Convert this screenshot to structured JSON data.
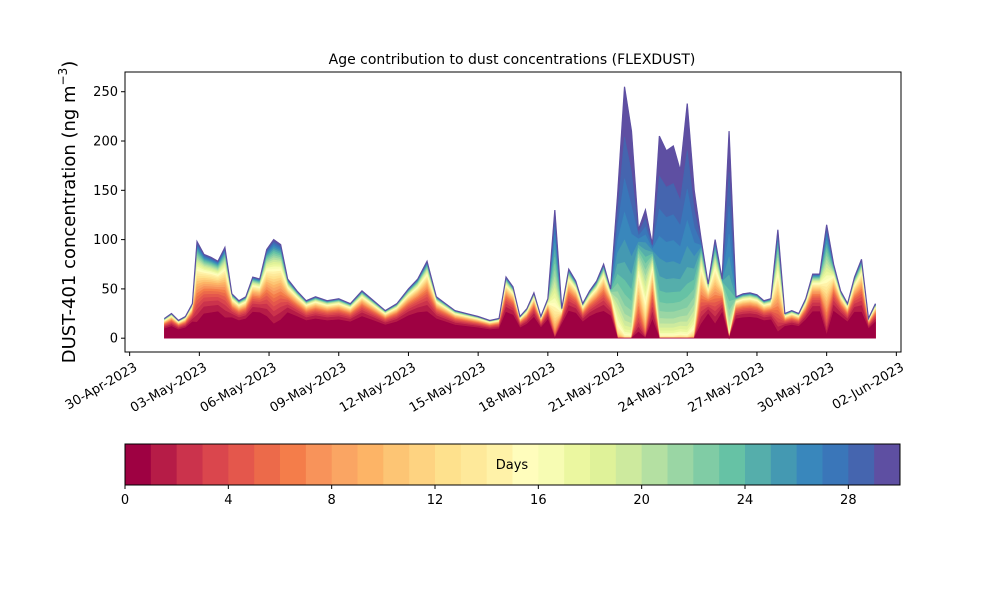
{
  "chart_data": {
    "type": "area",
    "title": "Age contribution to dust concentrations (FLEXDUST)",
    "ylabel_main": "DUST-401 concentration (ng m",
    "ylabel_exp": "−3",
    "ylabel_close": ")",
    "ylim": [
      -14,
      270
    ],
    "yticks": [
      0,
      50,
      100,
      150,
      200,
      250
    ],
    "x_unit": "days since 30-Apr-2023",
    "xlim": [
      -0.2,
      33.2
    ],
    "xticks": [
      {
        "x": 0,
        "label": "30-Apr-2023"
      },
      {
        "x": 3,
        "label": "03-May-2023"
      },
      {
        "x": 6,
        "label": "06-May-2023"
      },
      {
        "x": 9,
        "label": "09-May-2023"
      },
      {
        "x": 12,
        "label": "12-May-2023"
      },
      {
        "x": 15,
        "label": "15-May-2023"
      },
      {
        "x": 18,
        "label": "18-May-2023"
      },
      {
        "x": 21,
        "label": "21-May-2023"
      },
      {
        "x": 24,
        "label": "24-May-2023"
      },
      {
        "x": 27,
        "label": "27-May-2023"
      },
      {
        "x": 30,
        "label": "30-May-2023"
      },
      {
        "x": 33,
        "label": "02-Jun-2023"
      }
    ],
    "total": {
      "x": [
        1.5,
        1.8,
        2.1,
        2.4,
        2.7,
        2.9,
        3.2,
        3.5,
        3.8,
        4.1,
        4.4,
        4.7,
        5.0,
        5.3,
        5.6,
        5.9,
        6.2,
        6.5,
        6.8,
        7.2,
        7.6,
        8.0,
        8.5,
        9.0,
        9.5,
        10.0,
        10.5,
        11.0,
        11.5,
        12.0,
        12.4,
        12.8,
        13.2,
        13.6,
        14.0,
        14.5,
        15.0,
        15.5,
        15.9,
        16.2,
        16.5,
        16.8,
        17.1,
        17.4,
        17.7,
        18.0,
        18.3,
        18.6,
        18.9,
        19.2,
        19.5,
        19.8,
        20.1,
        20.4,
        20.7,
        21.0,
        21.3,
        21.6,
        21.9,
        22.2,
        22.5,
        22.8,
        23.1,
        23.4,
        23.7,
        24.0,
        24.3,
        24.6,
        24.9,
        25.2,
        25.5,
        25.8,
        26.1,
        26.4,
        26.7,
        27.0,
        27.3,
        27.6,
        27.9,
        28.2,
        28.5,
        28.8,
        29.1,
        29.4,
        29.7,
        30.0,
        30.3,
        30.6,
        30.9,
        31.2,
        31.5,
        31.8,
        32.1
      ],
      "y": [
        20,
        25,
        18,
        22,
        35,
        98,
        85,
        82,
        78,
        92,
        45,
        38,
        42,
        62,
        60,
        90,
        100,
        95,
        60,
        48,
        38,
        42,
        38,
        40,
        35,
        48,
        38,
        28,
        35,
        50,
        60,
        78,
        42,
        35,
        28,
        25,
        22,
        18,
        20,
        62,
        52,
        22,
        30,
        46,
        22,
        40,
        130,
        30,
        70,
        58,
        35,
        48,
        58,
        75,
        50,
        145,
        255,
        210,
        110,
        130,
        95,
        205,
        190,
        195,
        170,
        238,
        150,
        100,
        55,
        100,
        60,
        210,
        42,
        45,
        46,
        44,
        38,
        40,
        110,
        25,
        28,
        25,
        40,
        65,
        65,
        115,
        75,
        48,
        35,
        62,
        80,
        20,
        35
      ]
    },
    "colorbar": {
      "label": "Days",
      "range": [
        0,
        30
      ],
      "ticks": [
        0,
        4,
        8,
        12,
        16,
        20,
        24,
        28
      ],
      "colors": [
        "#9e0142",
        "#b61c47",
        "#cb334c",
        "#da464d",
        "#e4574c",
        "#ec6a4a",
        "#f47d4a",
        "#f8935a",
        "#faa563",
        "#fdb466",
        "#fdc574",
        "#fed381",
        "#fee18d",
        "#fee99a",
        "#fff2a8",
        "#fffdbc",
        "#f7fcb3",
        "#ebf7a0",
        "#dff299",
        "#cdea9e",
        "#b4e0a2",
        "#9ad6a4",
        "#80cca5",
        "#66c2a5",
        "#55aeab",
        "#4499b2",
        "#3987bc",
        "#3a76b9",
        "#4565af",
        "#5e4fa2"
      ]
    }
  }
}
